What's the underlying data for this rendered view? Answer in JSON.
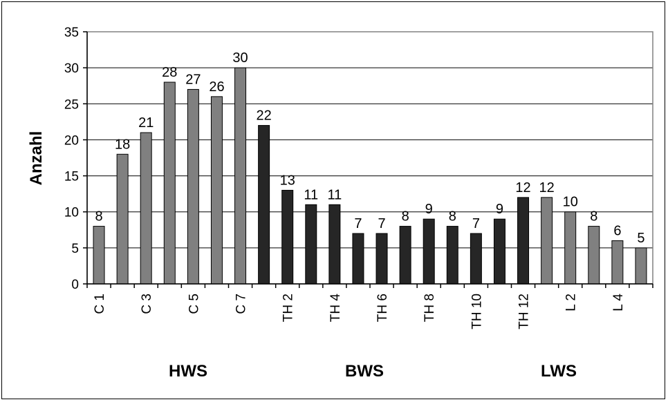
{
  "chart_data": {
    "type": "bar",
    "ylabel": "Anzahl",
    "xlabel": "",
    "ylim": [
      0,
      35
    ],
    "yticks": [
      0,
      5,
      10,
      15,
      20,
      25,
      30,
      35
    ],
    "grid": true,
    "legend": "none",
    "categories": [
      "C 1",
      "",
      "C 3",
      "",
      "C 5",
      "",
      "C 7",
      "",
      "TH 2",
      "",
      "TH 4",
      "",
      "TH 6",
      "",
      "TH 8",
      "",
      "TH 10",
      "",
      "TH 12",
      "",
      "L 2",
      "",
      "L 4",
      ""
    ],
    "values": [
      8,
      18,
      21,
      28,
      27,
      26,
      30,
      22,
      13,
      11,
      11,
      7,
      7,
      8,
      9,
      8,
      7,
      9,
      12,
      12,
      10,
      8,
      6,
      5
    ],
    "bar_types": [
      "HWS",
      "HWS",
      "HWS",
      "HWS",
      "HWS",
      "HWS",
      "HWS",
      "BWS",
      "BWS",
      "BWS",
      "BWS",
      "BWS",
      "BWS",
      "BWS",
      "BWS",
      "BWS",
      "BWS",
      "BWS",
      "BWS",
      "LWS",
      "LWS",
      "LWS",
      "LWS",
      "LWS"
    ],
    "colors": {
      "HWS": "#808080",
      "BWS": "#262626",
      "LWS": "#808080"
    },
    "group_labels": [
      "HWS",
      "BWS",
      "LWS"
    ],
    "tick_labels": [
      "C 1",
      "C 3",
      "C 5",
      "C 7",
      "TH 2",
      "TH 4",
      "TH 6",
      "TH 8",
      "TH 10",
      "TH 12",
      "L 2",
      "L 4"
    ]
  }
}
